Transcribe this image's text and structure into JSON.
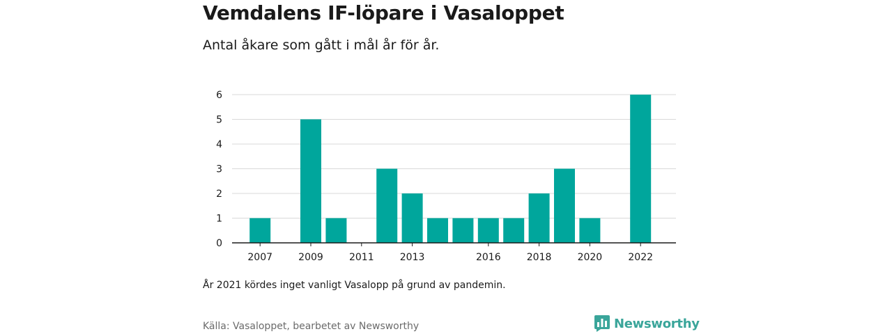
{
  "header": {
    "title": "Vemdalens IF-löpare i Vasaloppet",
    "subtitle": "Antal åkare som gått i mål år för år."
  },
  "footer": {
    "note": "År 2021 kördes inget vanligt Vasalopp på grund av pandemin.",
    "source": "Källa: Vasaloppet, bearbetet av Newsworthy",
    "brand": "Newsworthy",
    "brand_icon": "newsworthy-logo-icon"
  },
  "colors": {
    "bar": "#00a69c",
    "grid": "#d9d9d9",
    "axis": "#1a1a1a",
    "brand": "#3aa59a"
  },
  "chart_data": {
    "type": "bar",
    "title": "Vemdalens IF-löpare i Vasaloppet",
    "subtitle": "Antal åkare som gått i mål år för år.",
    "xlabel": "",
    "ylabel": "",
    "ylim": [
      0,
      6
    ],
    "yticks": [
      0,
      1,
      2,
      3,
      4,
      5,
      6
    ],
    "grid": true,
    "legend": "none",
    "categories": [
      2007,
      2008,
      2009,
      2010,
      2011,
      2012,
      2013,
      2014,
      2015,
      2016,
      2017,
      2018,
      2019,
      2020,
      2021,
      2022
    ],
    "values": [
      1,
      null,
      5,
      1,
      null,
      3,
      2,
      1,
      1,
      1,
      1,
      2,
      3,
      1,
      null,
      6
    ],
    "xtick_labels": [
      "2007",
      "2009",
      "2011",
      "2013",
      "2016",
      "2018",
      "2020",
      "2022"
    ]
  }
}
